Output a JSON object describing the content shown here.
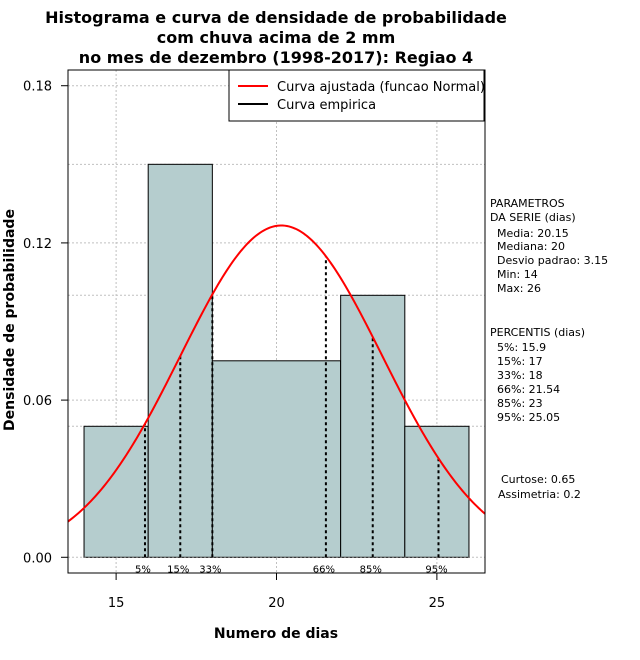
{
  "chart_data": {
    "type": "bar",
    "title_lines": [
      "Histograma e curva de densidade de probabilidade",
      "com chuva acima de 2 mm",
      "no mes de dezembro (1998-2017): Regiao 4"
    ],
    "xlabel": "Numero de dias",
    "ylabel": "Densidade de probabilidade",
    "xlim": [
      13.5,
      26.5
    ],
    "ylim": [
      -0.006,
      0.186
    ],
    "x_ticks": [
      15,
      20,
      25
    ],
    "y_ticks": [
      0.0,
      0.06,
      0.12,
      0.18
    ],
    "y_tick_labels": [
      "0.00",
      "0.06",
      "0.12",
      "0.18"
    ],
    "grid": true,
    "bins": [
      {
        "from": 14,
        "to": 16,
        "density": 0.05
      },
      {
        "from": 16,
        "to": 18,
        "density": 0.15
      },
      {
        "from": 18,
        "to": 22,
        "density": 0.075
      },
      {
        "from": 22,
        "to": 24,
        "density": 0.1
      },
      {
        "from": 24,
        "to": 26,
        "density": 0.05
      }
    ],
    "bar_color": "#b5cdce",
    "normal_curve": {
      "mean": 20.15,
      "sd": 3.15,
      "color": "#ff0000"
    },
    "legend": {
      "position": "top-right",
      "items": [
        {
          "label": "Curva ajustada (funcao Normal)",
          "color": "#ff0000"
        },
        {
          "label": "Curva empirica",
          "color": "#000000"
        }
      ]
    },
    "percentiles": [
      {
        "label": "5%",
        "value": 15.9
      },
      {
        "label": "15%",
        "value": 17
      },
      {
        "label": "33%",
        "value": 18
      },
      {
        "label": "66%",
        "value": 21.54
      },
      {
        "label": "85%",
        "value": 23
      },
      {
        "label": "95%",
        "value": 25.05
      }
    ]
  },
  "side_panel": {
    "params_title_1": "PARAMETROS",
    "params_title_2": "DA SERIE (dias)",
    "params": [
      "Media: 20.15",
      "Mediana: 20",
      "Desvio padrao: 3.15",
      "Min: 14",
      "Max: 26"
    ],
    "percentis_title": "PERCENTIS (dias)",
    "percentis": [
      "5%: 15.9",
      "15%: 17",
      "33%: 18",
      "66%: 21.54",
      "85%: 23",
      "95%: 25.05"
    ],
    "curtose": "Curtose: 0.65",
    "assimetria": "Assimetria: 0.2"
  }
}
